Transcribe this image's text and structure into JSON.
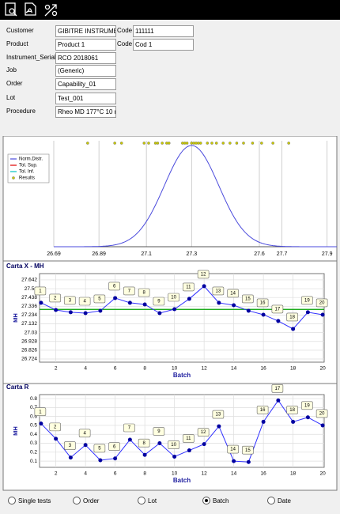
{
  "form": {
    "rows": [
      {
        "label": "Customer",
        "value": "GIBITRE INSTRUMEN",
        "code_label": "Code",
        "code": "111111"
      },
      {
        "label": "Product",
        "value": "Product 1",
        "code_label": "Code",
        "code": "Cod 1"
      },
      {
        "label": "Instrument_Serial",
        "value": "RCO 2018061"
      },
      {
        "label": "Job",
        "value": "(Generic)"
      },
      {
        "label": "Order",
        "value": "Capability_01"
      },
      {
        "label": "Lot",
        "value": "Test_001"
      },
      {
        "label": "Procedure",
        "value": "Rheo MD 177°C 10 n"
      }
    ]
  },
  "chart_data": [
    {
      "type": "distribution",
      "series": [
        {
          "name": "Norm.Distr.",
          "color": "#4b4bdc",
          "mean": 27.3,
          "sd": 0.12
        },
        {
          "name": "Tol. Sup.",
          "color": "#e00000"
        },
        {
          "name": "Tol. Inf.",
          "color": "#00c0c0"
        },
        {
          "name": "Results",
          "color": "#c8c800",
          "x": [
            26.84,
            26.96,
            26.99,
            27.09,
            27.11,
            27.14,
            27.15,
            27.17,
            27.19,
            27.2,
            27.26,
            27.27,
            27.28,
            27.3,
            27.31,
            27.32,
            27.33,
            27.34,
            27.37,
            27.39,
            27.41,
            27.44,
            27.47,
            27.5,
            27.53,
            27.57,
            27.61,
            27.66,
            27.73
          ]
        }
      ],
      "xlim": [
        26.69,
        27.95
      ],
      "xticks": [
        26.69,
        26.89,
        27.1,
        27.3,
        27.6,
        27.7,
        27.9
      ],
      "grid": true
    },
    {
      "type": "line",
      "title": "Carta X - MH",
      "x_label": "Batch",
      "y_label": "MH",
      "x": [
        1,
        2,
        3,
        4,
        5,
        6,
        7,
        8,
        9,
        10,
        11,
        12,
        13,
        14,
        15,
        16,
        17,
        18,
        19,
        20
      ],
      "series": [
        {
          "color": "#3030ff",
          "values": [
            27.376,
            27.293,
            27.266,
            27.256,
            27.284,
            27.431,
            27.376,
            27.357,
            27.256,
            27.302,
            27.422,
            27.569,
            27.376,
            27.348,
            27.284,
            27.238,
            27.165,
            27.073,
            27.266,
            27.238
          ]
        }
      ],
      "center_line": {
        "value": 27.3,
        "color": "#00a000"
      },
      "xlim": [
        0.9,
        20.1
      ],
      "xticks": [
        2,
        4,
        6,
        8,
        10,
        12,
        14,
        16,
        18,
        20
      ],
      "ylim": [
        26.687,
        27.715
      ],
      "yticks": [
        27.642,
        27.54,
        27.438,
        27.336,
        27.234,
        27.132,
        27.03,
        26.928,
        26.826,
        26.724
      ],
      "grid": true
    },
    {
      "type": "line",
      "title": "Carta R",
      "x_label": "Batch",
      "y_label": "MH",
      "x": [
        1,
        2,
        3,
        4,
        5,
        6,
        7,
        8,
        9,
        10,
        11,
        12,
        13,
        14,
        15,
        16,
        17,
        18,
        19,
        20
      ],
      "series": [
        {
          "color": "#3030ff",
          "values": [
            0.52,
            0.35,
            0.14,
            0.28,
            0.11,
            0.13,
            0.34,
            0.17,
            0.3,
            0.15,
            0.22,
            0.29,
            0.49,
            0.1,
            0.09,
            0.54,
            0.78,
            0.54,
            0.59,
            0.5
          ]
        }
      ],
      "xlim": [
        0.9,
        20.1
      ],
      "xticks": [
        2,
        4,
        6,
        8,
        10,
        12,
        14,
        16,
        18,
        20
      ],
      "ylim": [
        0.03,
        0.845
      ],
      "yticks": [
        0.1,
        0.2,
        0.3,
        0.4,
        0.5,
        0.6,
        0.7,
        0.8
      ],
      "grid": true
    }
  ],
  "options": {
    "items": [
      "Single tests",
      "Order",
      "Lot",
      "Batch",
      "Date"
    ],
    "selected": 3
  }
}
